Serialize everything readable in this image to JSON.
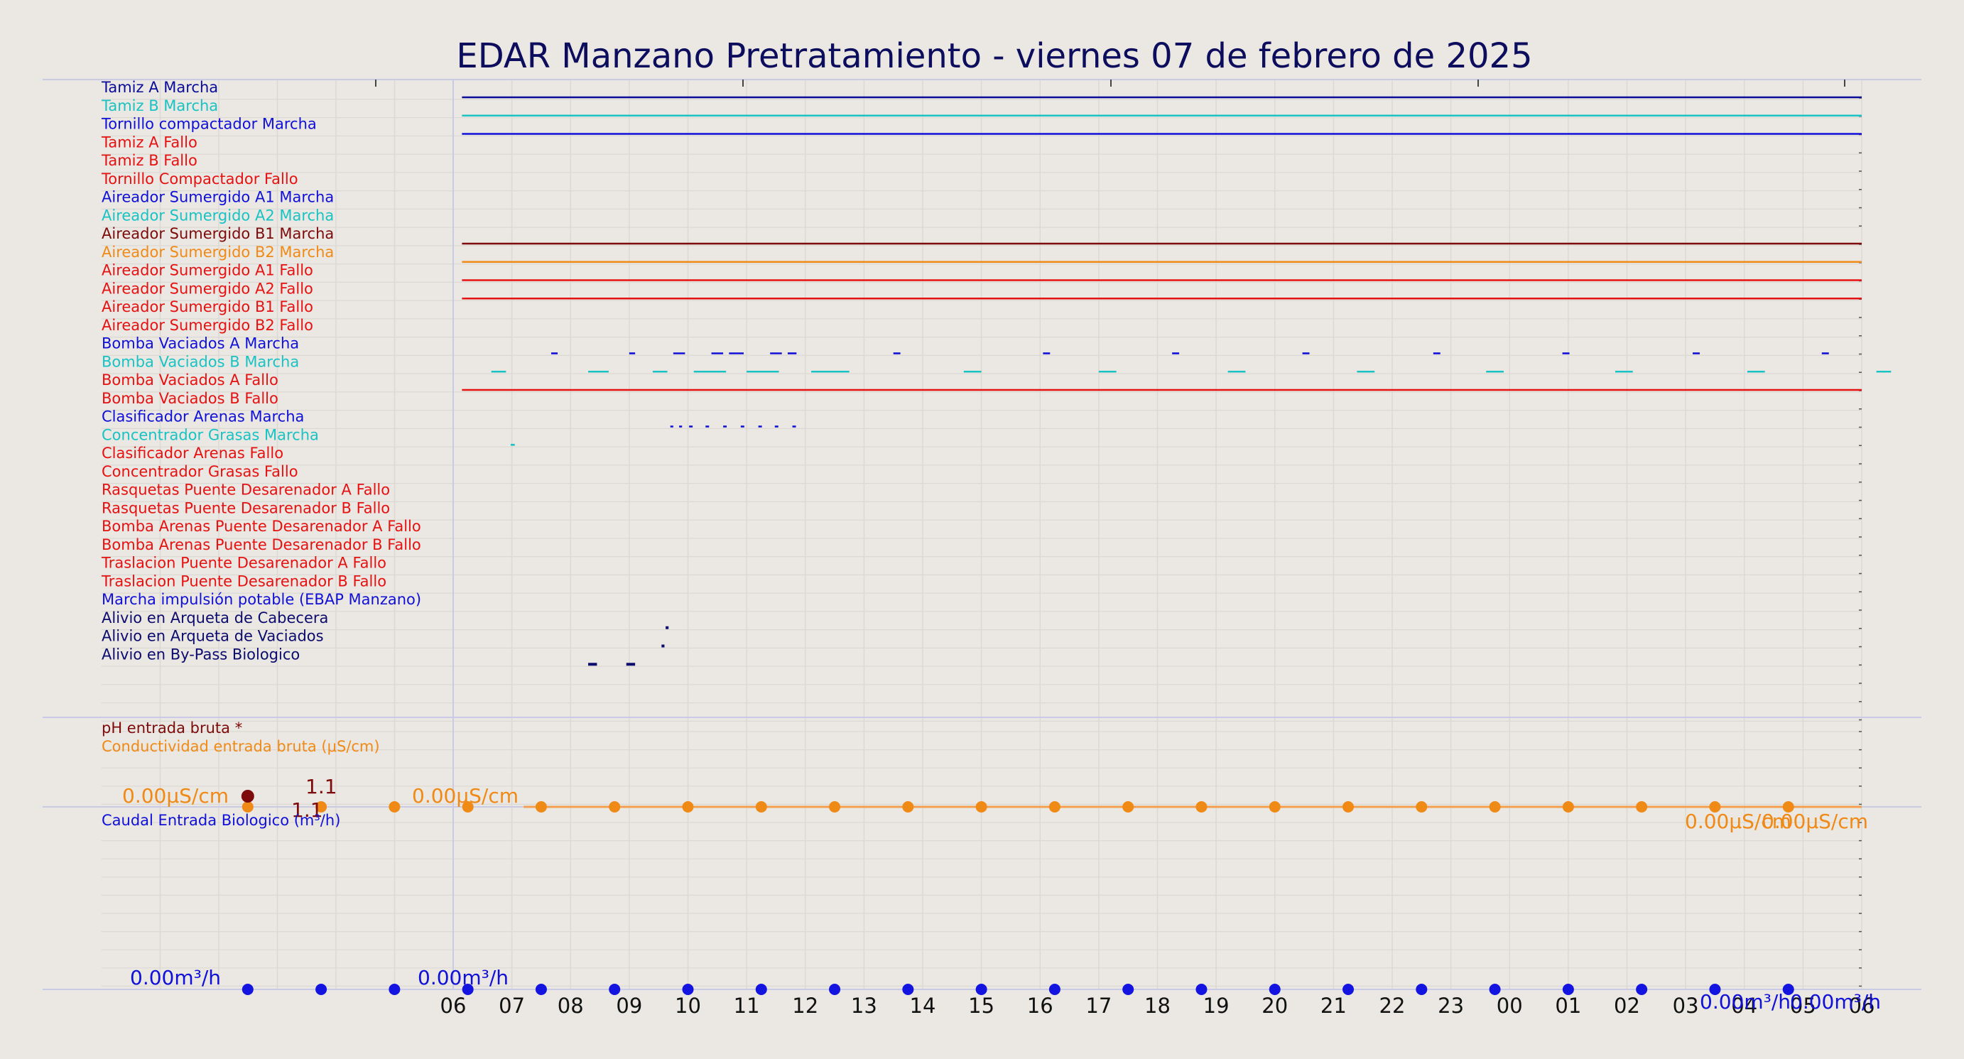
{
  "chart_data": {
    "type": "timeline",
    "title": "EDAR Manzano Pretratamiento   -   viernes 07 de febrero de 2025",
    "x_ticks": [
      "06",
      "07",
      "08",
      "09",
      "10",
      "11",
      "12",
      "13",
      "14",
      "15",
      "16",
      "17",
      "18",
      "19",
      "20",
      "21",
      "22",
      "23",
      "00",
      "01",
      "02",
      "03",
      "04",
      "05",
      "06"
    ],
    "x_range_hours": [
      0,
      24
    ],
    "colors": {
      "title": "#0d0d5e",
      "background": "#ebe7e2",
      "grid": "#dcd8d3",
      "axis": "#c9cbe6",
      "navy": "#0c0c7a",
      "blue": "#1010d8",
      "cyan": "#19c3c3",
      "darkred": "#7d0b0b",
      "orange": "#f08a17",
      "red": "#e61212"
    },
    "signals": [
      {
        "label": "Tamiz A Marcha",
        "color": "#0c0c9a",
        "segments": [
          [
            0.15,
            24
          ]
        ]
      },
      {
        "label": "Tamiz B Marcha",
        "color": "#19c3c3",
        "segments": [
          [
            0.15,
            24
          ]
        ]
      },
      {
        "label": "Tornillo compactador Marcha",
        "color": "#1010d8",
        "segments": [
          [
            0.15,
            24
          ]
        ]
      },
      {
        "label": "Tamiz A Fallo",
        "color": "#e61212",
        "segments": []
      },
      {
        "label": "Tamiz B Fallo",
        "color": "#e61212",
        "segments": []
      },
      {
        "label": "Tornillo Compactador Fallo",
        "color": "#e61212",
        "segments": []
      },
      {
        "label": "Aireador Sumergido A1 Marcha",
        "color": "#1010d8",
        "segments": []
      },
      {
        "label": "Aireador Sumergido A2 Marcha",
        "color": "#19c3c3",
        "segments": []
      },
      {
        "label": "Aireador Sumergido B1 Marcha",
        "color": "#7d0b0b",
        "segments": [
          [
            0.15,
            24
          ]
        ]
      },
      {
        "label": "Aireador Sumergido B2 Marcha",
        "color": "#f08a17",
        "segments": [
          [
            0.15,
            24
          ]
        ]
      },
      {
        "label": "Aireador Sumergido A1 Fallo",
        "color": "#e61212",
        "segments": [
          [
            0.15,
            24
          ]
        ]
      },
      {
        "label": "Aireador Sumergido A2 Fallo",
        "color": "#e61212",
        "segments": [
          [
            0.15,
            24
          ]
        ]
      },
      {
        "label": "Aireador Sumergido B1 Fallo",
        "color": "#e61212",
        "segments": []
      },
      {
        "label": "Aireador Sumergido B2 Fallo",
        "color": "#e61212",
        "segments": []
      },
      {
        "label": "Bomba Vaciados A Marcha",
        "color": "#1010d8",
        "segments": [
          [
            1.67,
            1.78
          ],
          [
            3.0,
            3.1
          ],
          [
            3.75,
            3.95
          ],
          [
            4.4,
            4.6
          ],
          [
            4.7,
            4.95
          ],
          [
            5.4,
            5.6
          ],
          [
            5.7,
            5.85
          ],
          [
            7.5,
            7.62
          ],
          [
            10.05,
            10.17
          ],
          [
            12.25,
            12.37
          ],
          [
            14.47,
            14.59
          ],
          [
            16.7,
            16.82
          ],
          [
            18.9,
            19.02
          ],
          [
            21.12,
            21.24
          ],
          [
            23.32,
            23.44
          ]
        ]
      },
      {
        "label": "Bomba Vaciados B Marcha",
        "color": "#19c3c3",
        "segments": [
          [
            0.65,
            0.9
          ],
          [
            2.3,
            2.65
          ],
          [
            3.4,
            3.65
          ],
          [
            4.1,
            4.65
          ],
          [
            5.0,
            5.55
          ],
          [
            6.1,
            6.75
          ],
          [
            8.7,
            9.0
          ],
          [
            11.0,
            11.3
          ],
          [
            13.2,
            13.5
          ],
          [
            15.4,
            15.7
          ],
          [
            17.6,
            17.9
          ],
          [
            19.8,
            20.1
          ],
          [
            22.05,
            22.35
          ],
          [
            24.25,
            24.5
          ]
        ]
      },
      {
        "label": "Bomba Vaciados A Fallo",
        "color": "#e61212",
        "segments": [
          [
            0.15,
            24
          ]
        ]
      },
      {
        "label": "Bomba Vaciados B Fallo",
        "color": "#e61212",
        "segments": []
      },
      {
        "label": "Clasificador Arenas Marcha",
        "color": "#1010d8",
        "segments": [
          [
            3.7,
            3.75
          ],
          [
            3.85,
            3.9
          ],
          [
            4.02,
            4.08
          ],
          [
            4.3,
            4.36
          ],
          [
            4.6,
            4.66
          ],
          [
            4.9,
            4.96
          ],
          [
            5.2,
            5.26
          ],
          [
            5.48,
            5.54
          ],
          [
            5.78,
            5.84
          ]
        ]
      },
      {
        "label": "Concentrador Grasas Marcha",
        "color": "#19c3c3",
        "segments": [
          [
            0.98,
            1.05
          ]
        ]
      },
      {
        "label": "Clasificador Arenas Fallo",
        "color": "#e61212",
        "segments": []
      },
      {
        "label": "Concentrador Grasas Fallo",
        "color": "#e61212",
        "segments": []
      },
      {
        "label": "Rasquetas Puente Desarenador A Fallo",
        "color": "#e61212",
        "segments": []
      },
      {
        "label": "Rasquetas Puente Desarenador B Fallo",
        "color": "#e61212",
        "segments": []
      },
      {
        "label": "Bomba Arenas Puente Desarenador A Fallo",
        "color": "#e61212",
        "segments": []
      },
      {
        "label": "Bomba Arenas Puente Desarenador B Fallo",
        "color": "#e61212",
        "segments": []
      },
      {
        "label": "Traslacion Puente Desarenador A Fallo",
        "color": "#e61212",
        "segments": []
      },
      {
        "label": "Traslacion Puente Desarenador B Fallo",
        "color": "#e61212",
        "segments": []
      },
      {
        "label": "Marcha impulsión potable (EBAP Manzano)",
        "color": "#1010d8",
        "segments": []
      },
      {
        "label": "Alivio en Arqueta de Cabecera",
        "color": "#0c0c6e",
        "segments": [
          [
            3.62,
            3.67
          ]
        ]
      },
      {
        "label": "Alivio en Arqueta de Vaciados",
        "color": "#0c0c6e",
        "segments": [
          [
            3.55,
            3.6
          ]
        ]
      },
      {
        "label": "Alivio en By-Pass Biologico",
        "color": "#0c0c6e",
        "segments": [
          [
            2.3,
            2.45
          ],
          [
            2.95,
            3.1
          ]
        ]
      }
    ],
    "panels": [
      {
        "series": [
          {
            "name": "pH entrada bruta *",
            "color": "#7d0b0b"
          },
          {
            "name": "Conductividad entrada bruta ($\\mu$S/cm)",
            "color": "#f08a17"
          }
        ],
        "marker_times_hours": [
          -3.5,
          -2.25,
          -1.0,
          0.25,
          1.5,
          2.75,
          4.0,
          5.25,
          6.5,
          7.75,
          9.0,
          10.25,
          11.5,
          12.75,
          14.0,
          15.25,
          16.5,
          17.75,
          19.0,
          20.25,
          21.5,
          22.75
        ],
        "conductivity_value": 0.0,
        "ph_value": 1.1,
        "annotations": [
          "0.00$\\mu$S/cm",
          "1.1",
          "1.1",
          "0.00$\\mu$S/cm",
          "0.00$\\mu$S/cm",
          "0.00$\\mu$S/cm"
        ]
      },
      {
        "series": [
          {
            "name": "Caudal Entrada Biologico (m³/h)",
            "color": "#1010d8"
          }
        ],
        "marker_times_hours": [
          -3.5,
          -2.25,
          -1.0,
          0.25,
          1.5,
          2.75,
          4.0,
          5.25,
          6.5,
          7.75,
          9.0,
          10.25,
          11.5,
          12.75,
          14.0,
          15.25,
          16.5,
          17.75,
          19.0,
          20.25,
          21.5,
          22.75
        ],
        "flow_value": 0.0,
        "annotations": [
          "0.00m³/h",
          "0.00m³/h",
          "0.00m³/h",
          "0.00m³/h"
        ]
      }
    ]
  }
}
